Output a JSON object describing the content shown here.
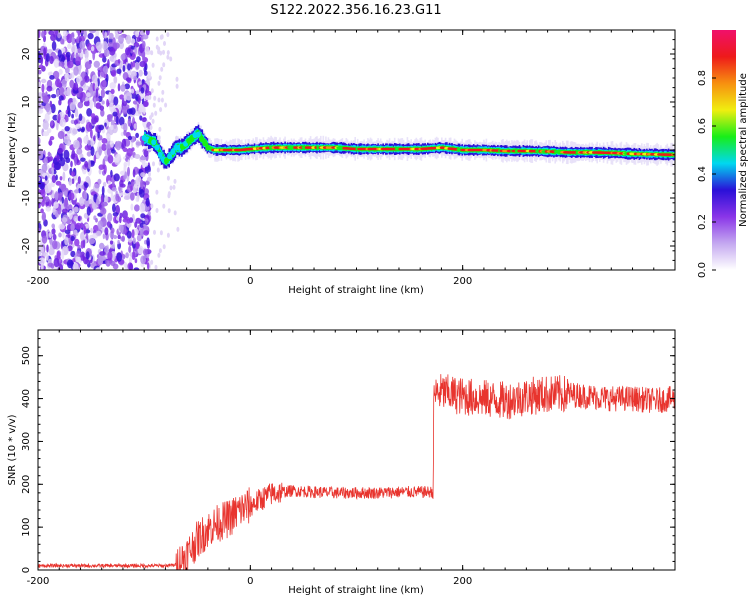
{
  "figure_title": "S122.2022.356.16.23.G11",
  "colors": {
    "snr_line": "#e8342e",
    "background": "#ffffff",
    "axis": "#000000",
    "colormap": [
      "#ffffff",
      "#c4a8f0",
      "#8a35e8",
      "#2a10d8",
      "#00d8f0",
      "#18ee18",
      "#f0ee10",
      "#f79010",
      "#ee1a1a",
      "#f0106a"
    ]
  },
  "chart_data": [
    {
      "type": "heatmap",
      "title": "",
      "xlabel": "Height of straight line (km)",
      "ylabel": "Frequency (Hz)",
      "xlim": [
        -200,
        400
      ],
      "ylim": [
        -25,
        25
      ],
      "xticks": [
        "-200",
        "0",
        "200"
      ],
      "yticks": [
        "-20",
        "-10",
        "0",
        "10",
        "20"
      ],
      "colorbar": {
        "label": "Normalized spectral amplitude",
        "range": [
          0,
          1
        ],
        "ticks": [
          "0.0",
          "0.2",
          "0.4",
          "0.6",
          "0.8"
        ]
      },
      "noise_region_x": [
        -200,
        -95
      ],
      "ridge": {
        "x": [
          -100,
          -95,
          -90,
          -85,
          -80,
          -75,
          -70,
          -65,
          -60,
          -55,
          -50,
          -45,
          -40,
          -35,
          -30,
          -20,
          -10,
          0,
          20,
          40,
          60,
          80,
          100,
          120,
          140,
          160,
          180,
          200,
          220,
          240,
          260,
          280,
          300,
          320,
          340,
          360,
          380,
          400
        ],
        "frequency_hz": [
          2.5,
          2.0,
          1.5,
          -1.0,
          -2.5,
          -1.0,
          0.5,
          0.5,
          1.5,
          2.5,
          3.5,
          2.0,
          0.5,
          0.0,
          0.0,
          0.0,
          0.0,
          0.2,
          0.5,
          0.5,
          0.5,
          0.5,
          0.2,
          0.2,
          0.2,
          0.2,
          0.5,
          0.0,
          0.0,
          -0.2,
          -0.2,
          -0.3,
          -0.5,
          -0.5,
          -0.6,
          -0.8,
          -0.9,
          -1.0
        ]
      }
    },
    {
      "type": "line",
      "title": "",
      "xlabel": "Height of straight line (km)",
      "ylabel": "SNR (10 * v/v)",
      "xlim": [
        -200,
        400
      ],
      "ylim": [
        0,
        560
      ],
      "xticks": [
        "-200",
        "0",
        "200"
      ],
      "yticks": [
        "0",
        "100",
        "200",
        "300",
        "400",
        "500"
      ],
      "series": [
        {
          "x": [
            -200,
            -160,
            -120,
            -80,
            -70,
            -60,
            -50,
            -40,
            -30,
            -20,
            -10,
            0,
            10,
            20,
            30,
            40,
            60,
            80,
            100,
            120,
            140,
            160,
            172,
            173,
            180,
            200,
            220,
            240,
            260,
            280,
            300,
            320,
            340,
            360,
            380,
            400
          ],
          "y": [
            10,
            10,
            10,
            10,
            12,
            35,
            70,
            95,
            110,
            120,
            140,
            150,
            165,
            178,
            182,
            185,
            182,
            180,
            180,
            180,
            182,
            182,
            182,
            410,
            415,
            405,
            400,
            395,
            405,
            410,
            410,
            405,
            400,
            400,
            395,
            400
          ]
        }
      ]
    }
  ]
}
